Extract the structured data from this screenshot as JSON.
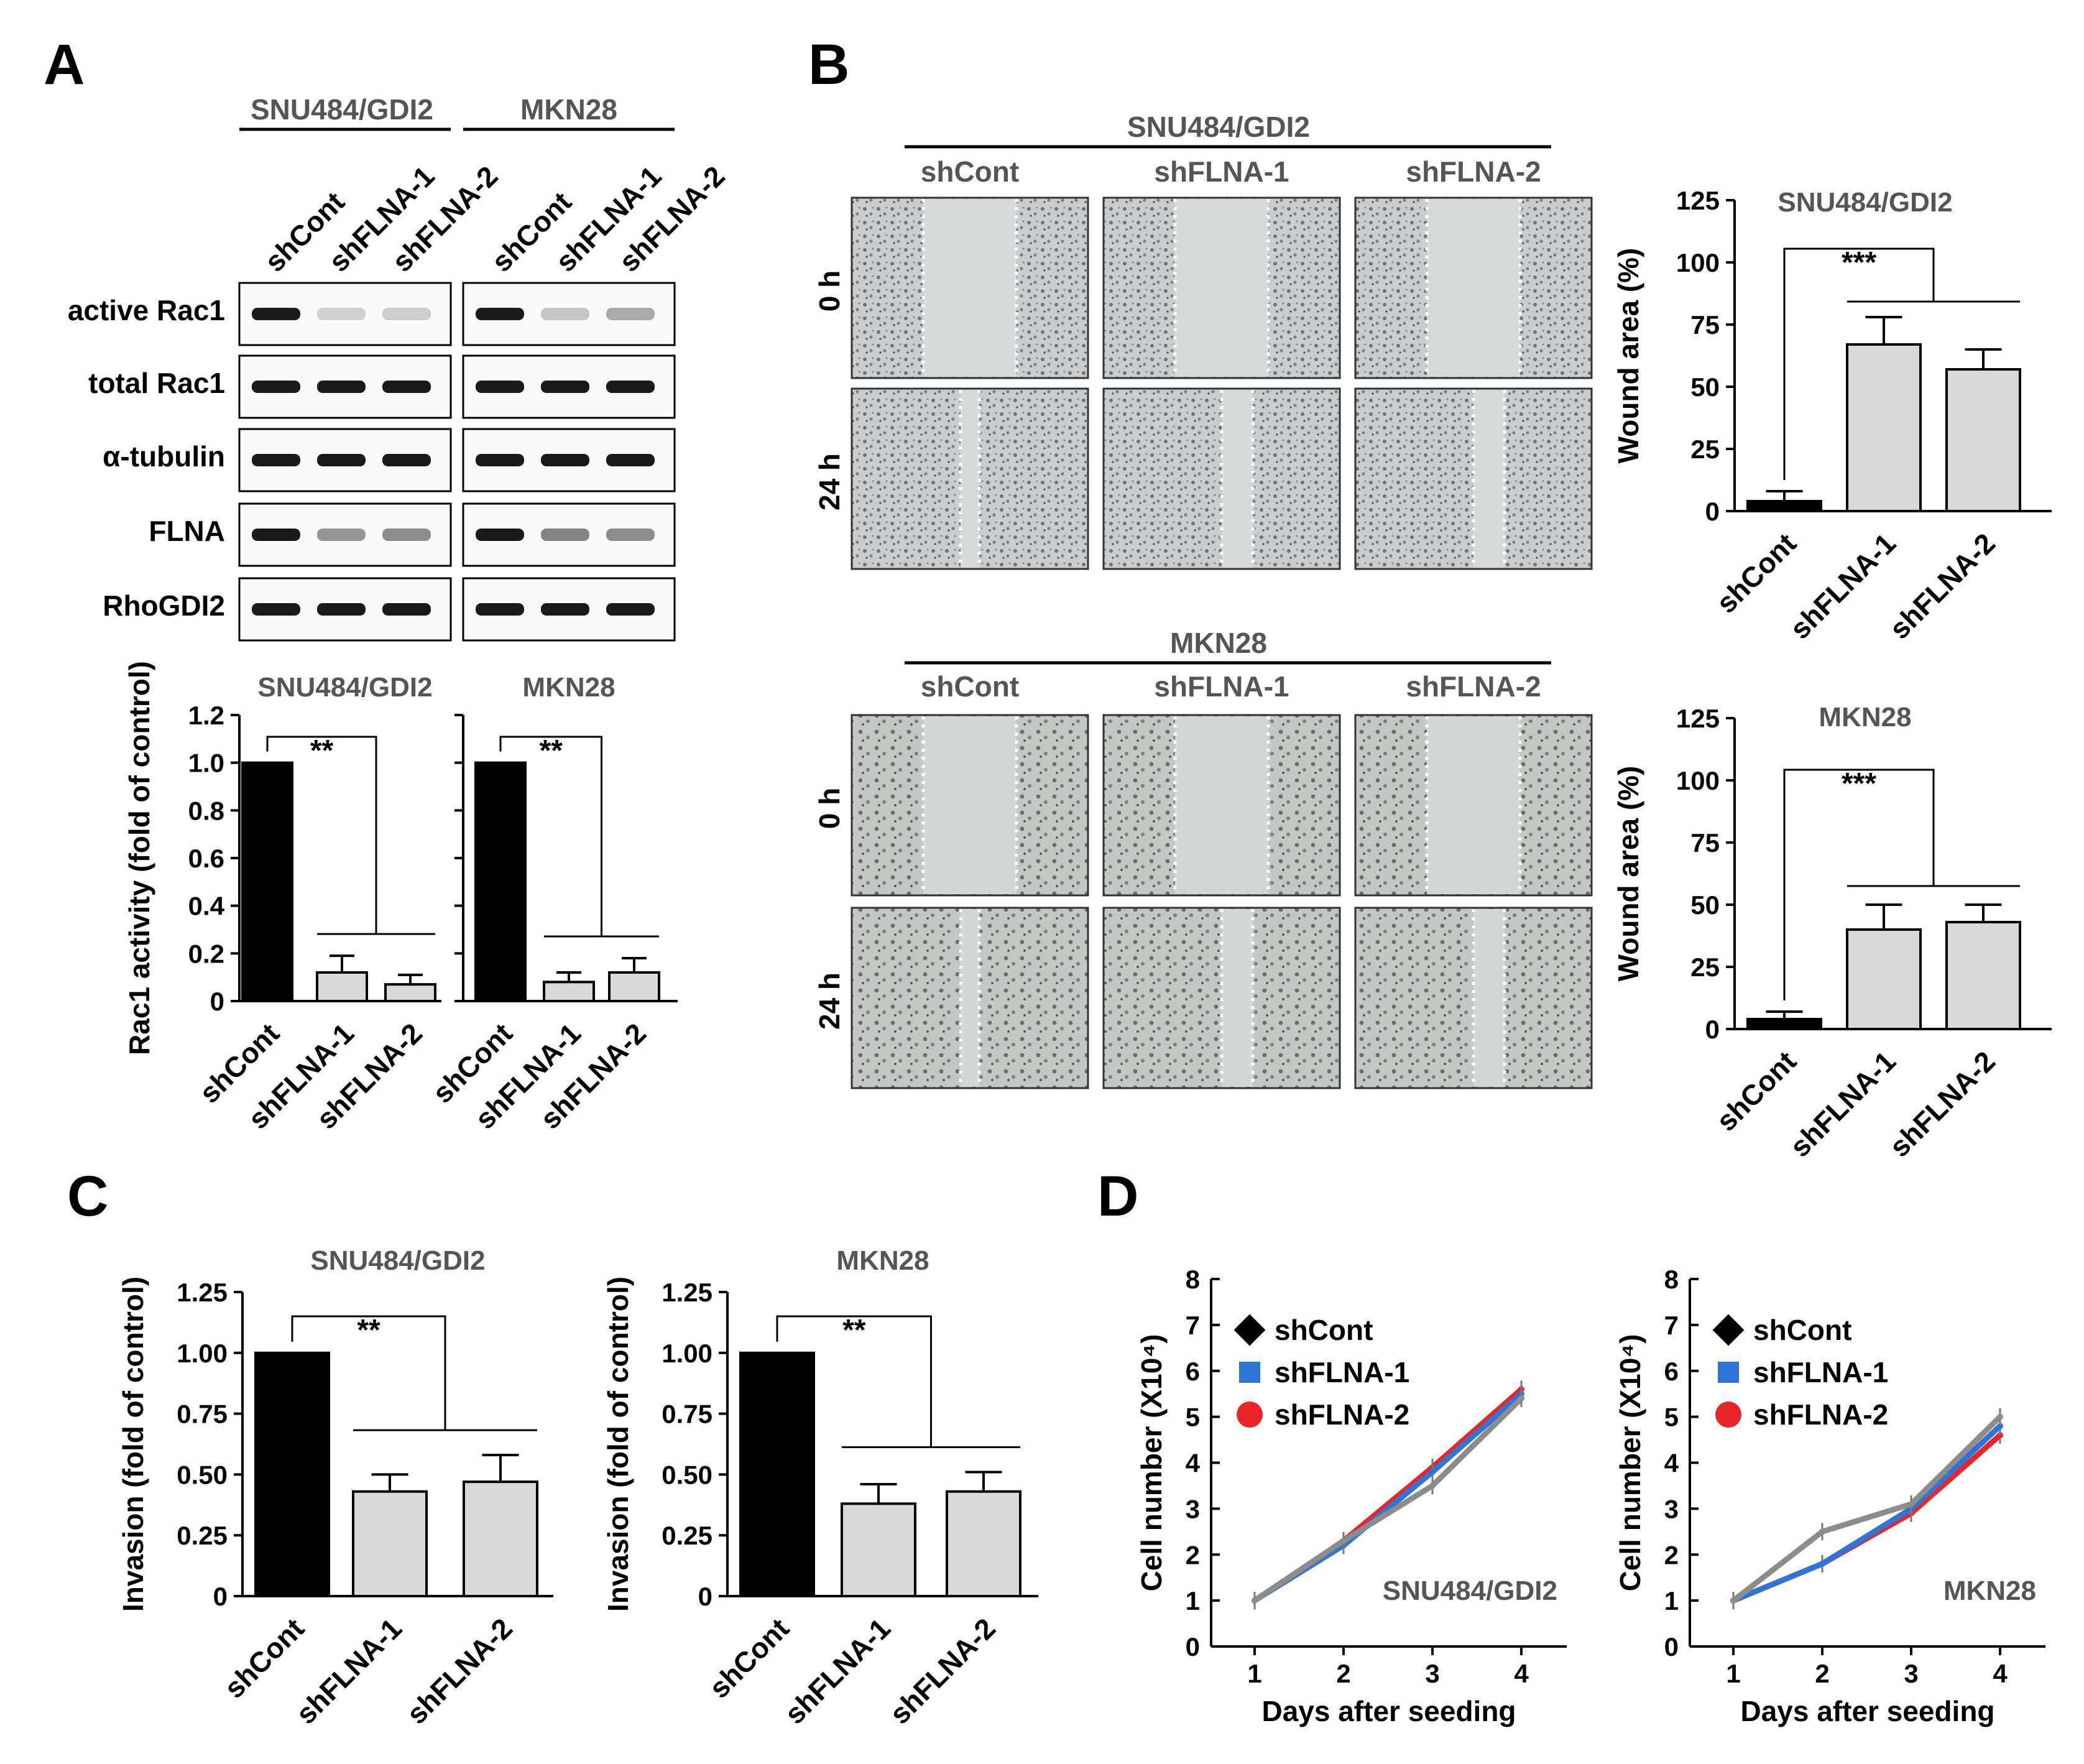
{
  "panels": {
    "A": {
      "letter": "A",
      "groups": [
        "SNU484/GDI2",
        "MKN28"
      ],
      "lanes": [
        "shCont",
        "shFLNA-1",
        "shFLNA-2"
      ],
      "blot_rows": [
        "active Rac1",
        "total Rac1",
        "α-tubulin",
        "FLNA",
        "RhoGDI2"
      ]
    },
    "B": {
      "letter": "B",
      "cell_lines": [
        "SNU484/GDI2",
        "MKN28"
      ],
      "conditions": [
        "shCont",
        "shFLNA-1",
        "shFLNA-2"
      ],
      "times": [
        "0 h",
        "24 h"
      ]
    },
    "C": {
      "letter": "C"
    },
    "D": {
      "letter": "D"
    }
  },
  "chart_data": [
    {
      "id": "A-SNU484",
      "type": "bar",
      "title": "SNU484/GDI2",
      "categories": [
        "shCont",
        "shFLNA-1",
        "shFLNA-2"
      ],
      "values": [
        1.0,
        0.12,
        0.07
      ],
      "errors": [
        0,
        0.07,
        0.04
      ],
      "ylabel": "Rac1 activity (fold of control)",
      "ylim": [
        0,
        1.2
      ],
      "yticks": [
        "0",
        "0.2",
        "0.4",
        "0.6",
        "0.8",
        "1.0",
        "1.2"
      ],
      "significance": "**"
    },
    {
      "id": "A-MKN28",
      "type": "bar",
      "title": "MKN28",
      "categories": [
        "shCont",
        "shFLNA-1",
        "shFLNA-2"
      ],
      "values": [
        1.0,
        0.08,
        0.12
      ],
      "errors": [
        0,
        0.04,
        0.06
      ],
      "ylim": [
        0,
        1.2
      ],
      "significance": "**"
    },
    {
      "id": "B-SNU484",
      "type": "bar",
      "title": "SNU484/GDI2",
      "categories": [
        "shCont",
        "shFLNA-1",
        "shFLNA-2"
      ],
      "values": [
        4,
        67,
        57
      ],
      "errors": [
        4,
        11,
        8
      ],
      "ylabel": "Wound area (%)",
      "ylim": [
        0,
        125
      ],
      "yticks": [
        "0",
        "25",
        "50",
        "75",
        "100",
        "125"
      ],
      "significance": "***"
    },
    {
      "id": "B-MKN28",
      "type": "bar",
      "title": "MKN28",
      "categories": [
        "shCont",
        "shFLNA-1",
        "shFLNA-2"
      ],
      "values": [
        4,
        40,
        43
      ],
      "errors": [
        3,
        10,
        7
      ],
      "ylabel": "Wound area (%)",
      "ylim": [
        0,
        125
      ],
      "yticks": [
        "0",
        "25",
        "50",
        "75",
        "100",
        "125"
      ],
      "significance": "***"
    },
    {
      "id": "C-SNU484",
      "type": "bar",
      "title": "SNU484/GDI2",
      "categories": [
        "shCont",
        "shFLNA-1",
        "shFLNA-2"
      ],
      "values": [
        1.0,
        0.43,
        0.47
      ],
      "errors": [
        0,
        0.07,
        0.11
      ],
      "ylabel": "Invasion  (fold of control)",
      "ylim": [
        0,
        1.25
      ],
      "yticks": [
        "0",
        "0.25",
        "0.50",
        "0.75",
        "1.00",
        "1.25"
      ],
      "significance": "**"
    },
    {
      "id": "C-MKN28",
      "type": "bar",
      "title": "MKN28",
      "categories": [
        "shCont",
        "shFLNA-1",
        "shFLNA-2"
      ],
      "values": [
        1.0,
        0.38,
        0.43
      ],
      "errors": [
        0,
        0.08,
        0.08
      ],
      "ylabel": "Invasion  (fold of control)",
      "ylim": [
        0,
        1.25
      ],
      "yticks": [
        "0",
        "0.25",
        "0.50",
        "0.75",
        "1.00",
        "1.25"
      ],
      "significance": "**"
    },
    {
      "id": "D-SNU484",
      "type": "line",
      "annotation": "SNU484/GDI2",
      "x": [
        1,
        2,
        3,
        4
      ],
      "series": [
        {
          "name": "shCont",
          "values": [
            1.0,
            2.3,
            3.5,
            5.4
          ],
          "color": "#8c8c8c"
        },
        {
          "name": "shFLNA-1",
          "values": [
            1.0,
            2.2,
            3.8,
            5.5
          ],
          "color": "#2e75d6"
        },
        {
          "name": "shFLNA-2",
          "values": [
            1.0,
            2.3,
            3.9,
            5.6
          ],
          "color": "#e8262a"
        }
      ],
      "xlabel": "Days after seeding",
      "ylabel": "Cell number (X10⁴)",
      "ylim": [
        0,
        8
      ],
      "legend_location": "top-left",
      "legend_marker_colors": [
        "#000000",
        "#2e75d6",
        "#e8262a"
      ]
    },
    {
      "id": "D-MKN28",
      "type": "line",
      "annotation": "MKN28",
      "x": [
        1,
        2,
        3,
        4
      ],
      "series": [
        {
          "name": "shCont",
          "values": [
            1.0,
            2.5,
            3.1,
            5.0
          ],
          "color": "#8c8c8c"
        },
        {
          "name": "shFLNA-1",
          "values": [
            1.0,
            1.8,
            3.0,
            4.8
          ],
          "color": "#2e75d6"
        },
        {
          "name": "shFLNA-2",
          "values": [
            1.0,
            1.8,
            2.9,
            4.6
          ],
          "color": "#e8262a"
        }
      ],
      "xlabel": "Days after seeding",
      "ylabel": "Cell number (X10⁴)",
      "ylim": [
        0,
        8
      ],
      "legend_location": "top-left",
      "legend_marker_colors": [
        "#000000",
        "#2e75d6",
        "#e8262a"
      ]
    }
  ]
}
